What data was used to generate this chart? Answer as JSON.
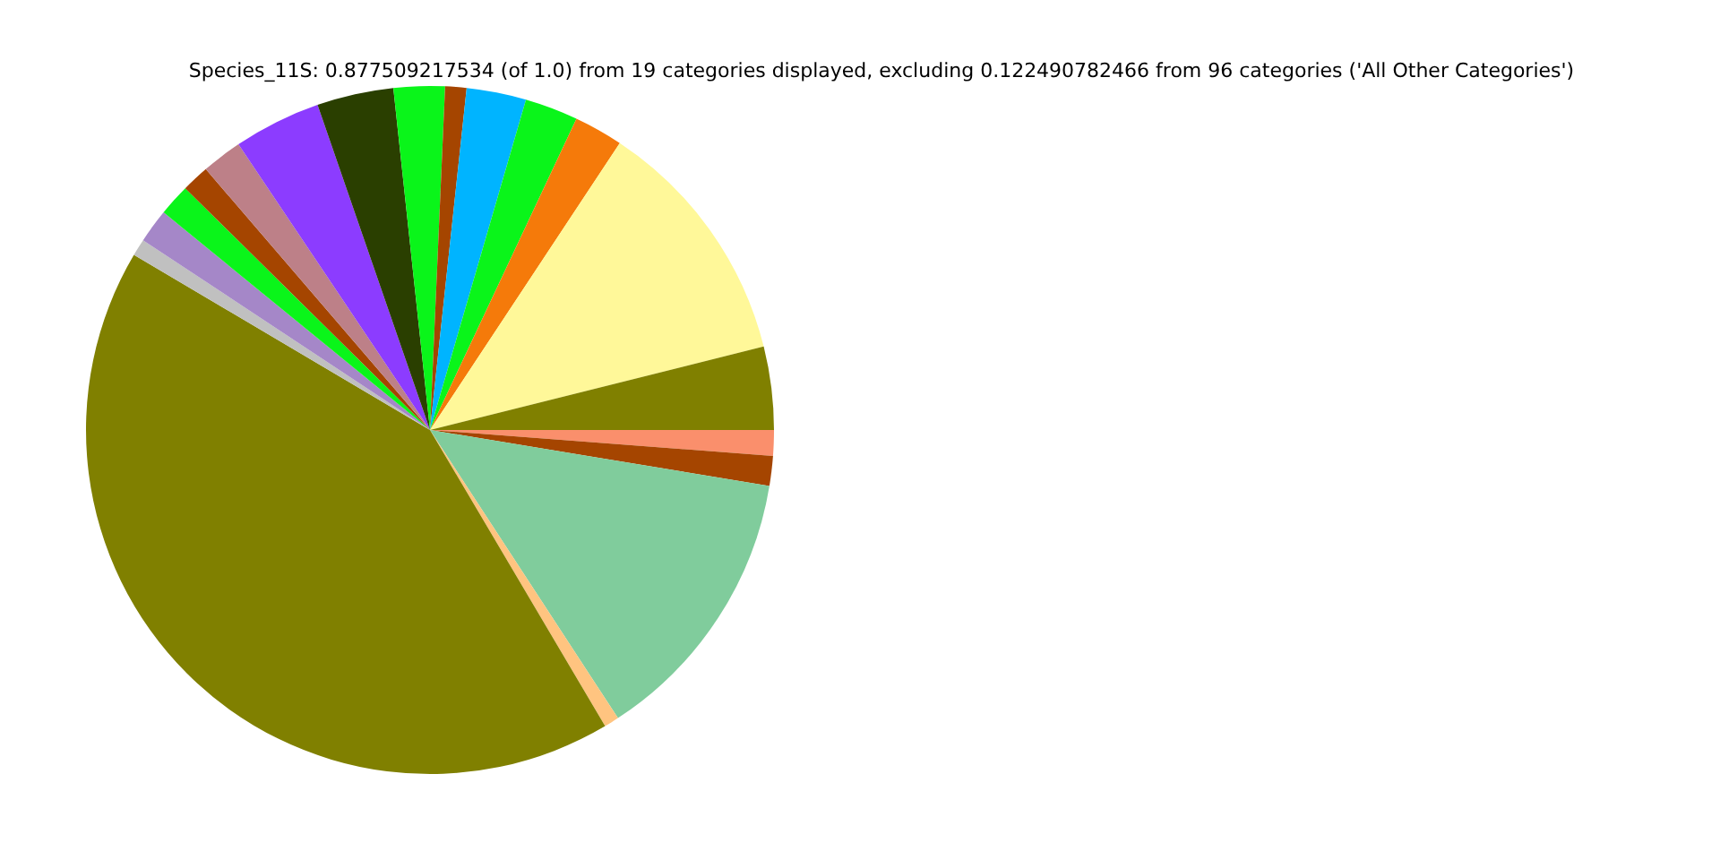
{
  "chart_data": {
    "type": "pie",
    "title": "Species_11S: 0.877509217534 (of 1.0) from 19 categories displayed, excluding 0.122490782466 from 96 categories ('All Other Categories')",
    "categories": [
      null,
      null,
      null,
      null,
      null,
      null,
      null,
      null,
      null,
      null,
      null,
      null,
      null,
      null,
      null,
      null,
      null,
      null,
      null
    ],
    "values": [
      1.2,
      1.4,
      13.2,
      0.7,
      42.0,
      0.8,
      1.6,
      1.5,
      1.3,
      1.9,
      4.1,
      3.6,
      2.4,
      1.0,
      2.8,
      2.5,
      2.3,
      11.8,
      3.9
    ],
    "colors": [
      "#fa8f6c",
      "#a54500",
      "#80cc9c",
      "#ffc480",
      "#808000",
      "#c0c0c0",
      "#a587c8",
      "#0af51a",
      "#a54500",
      "#bd8088",
      "#8c3cff",
      "#2a3f00",
      "#0af51a",
      "#a54500",
      "#00b4ff",
      "#0af51a",
      "#f57a0a",
      "#fff899",
      "#808000"
    ],
    "legend": false
  }
}
